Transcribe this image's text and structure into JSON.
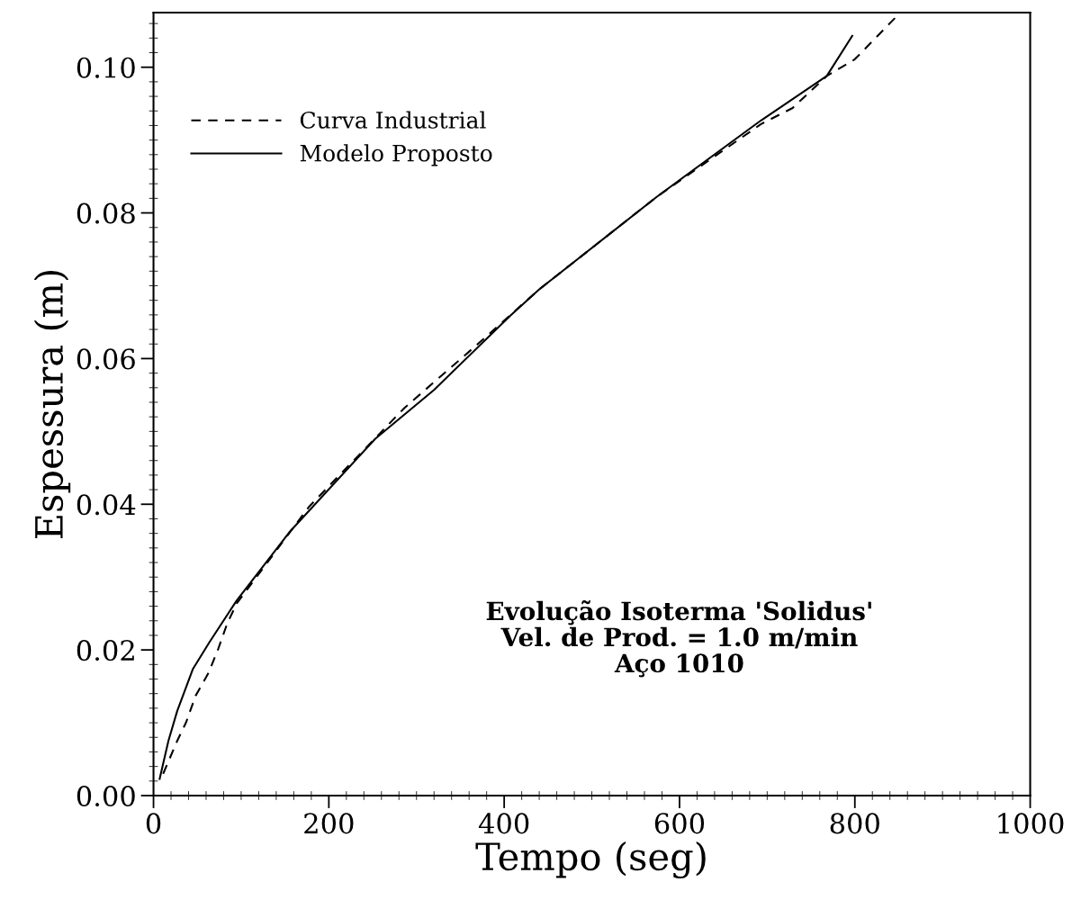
{
  "chart_data": {
    "type": "line",
    "xlabel": "Tempo (seg)",
    "ylabel": "Espessura (m)",
    "xlim": [
      0,
      1000
    ],
    "xticks": [
      0,
      200,
      400,
      600,
      800,
      1000
    ],
    "ylim": [
      0,
      0.1075
    ],
    "yticks": [
      {
        "value": 0,
        "label": "0.00"
      },
      {
        "value": 0.02,
        "label": "0.02"
      },
      {
        "value": 0.04,
        "label": "0.04"
      },
      {
        "value": 0.06,
        "label": "0.06"
      },
      {
        "value": 0.08,
        "label": "0.08"
      },
      {
        "value": 0.1,
        "label": "0.10"
      }
    ],
    "grid": false,
    "legend": "top left",
    "series": [
      {
        "name": "Curva Industrial",
        "color": "#000000",
        "line_style": "dashed",
        "x": [
          11,
          27,
          37,
          48,
          63,
          74,
          84,
          95,
          177,
          286,
          369,
          440,
          574,
          693,
          729,
          768,
          800,
          847
        ],
        "values": [
          0.003,
          0.0075,
          0.01,
          0.0137,
          0.0169,
          0.0202,
          0.0236,
          0.0264,
          0.0396,
          0.0532,
          0.0619,
          0.0695,
          0.0822,
          0.0922,
          0.0944,
          0.0988,
          0.1011,
          0.1069
        ]
      },
      {
        "name": "Modelo Proposto",
        "color": "#000000",
        "line_style": "solid",
        "x": [
          7,
          17,
          27,
          45,
          64,
          95,
          156,
          253,
          320,
          407,
          440,
          574,
          693,
          768,
          797
        ],
        "values": [
          0.0023,
          0.0075,
          0.0116,
          0.0174,
          0.0211,
          0.0268,
          0.0363,
          0.049,
          0.0557,
          0.0659,
          0.0695,
          0.0822,
          0.0927,
          0.0988,
          0.1043
        ]
      }
    ],
    "annotations": [
      "Evolução Isoterma 'Solidus'\nVel. de Prod. = 1.0 m/min\nAço 1010"
    ]
  }
}
